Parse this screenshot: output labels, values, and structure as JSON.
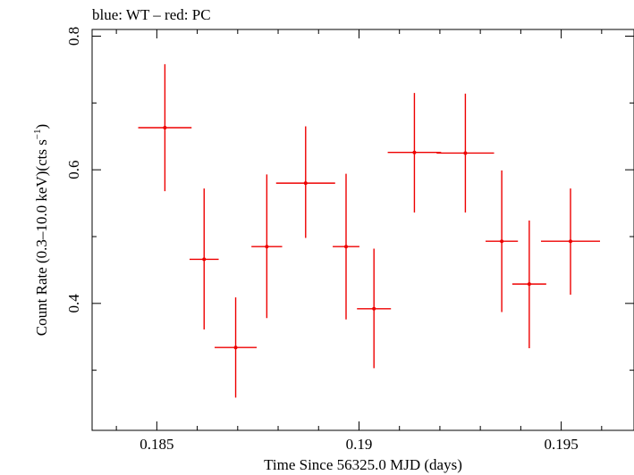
{
  "chart_data": {
    "type": "scatter",
    "title": "blue: WT – red: PC",
    "xlabel": "Time Since 56325.0 MJD (days)",
    "ylabel_main": "Count Rate (0.3–10.0 keV)(cts s",
    "ylabel_sup": "−1",
    "ylabel_end": ")",
    "xlim": [
      0.1834,
      0.1968
    ],
    "ylim": [
      0.21,
      0.81
    ],
    "x_ticks": [
      {
        "value": 0.185,
        "label": "0.185"
      },
      {
        "value": 0.19,
        "label": "0.19"
      },
      {
        "value": 0.195,
        "label": "0.195"
      }
    ],
    "x_minor_ticks": [
      0.184,
      0.186,
      0.187,
      0.188,
      0.189,
      0.191,
      0.192,
      0.193,
      0.194,
      0.196
    ],
    "y_ticks": [
      {
        "value": 0.4,
        "label": "0.4"
      },
      {
        "value": 0.6,
        "label": "0.6"
      },
      {
        "value": 0.8,
        "label": "0.8"
      }
    ],
    "y_minor_ticks": [
      0.3,
      0.5,
      0.7
    ],
    "series": [
      {
        "color": "#ee0000",
        "points": [
          {
            "x": 0.1852,
            "y": 0.663,
            "xerr": 0.00066,
            "ylo": 0.568,
            "yhi": 0.758
          },
          {
            "x": 0.18617,
            "y": 0.466,
            "xerr": 0.00036,
            "ylo": 0.361,
            "yhi": 0.572
          },
          {
            "x": 0.18695,
            "y": 0.334,
            "xerr": 0.00052,
            "ylo": 0.259,
            "yhi": 0.409
          },
          {
            "x": 0.18772,
            "y": 0.485,
            "xerr": 0.00038,
            "ylo": 0.378,
            "yhi": 0.593
          },
          {
            "x": 0.18868,
            "y": 0.58,
            "xerr": 0.00073,
            "ylo": 0.498,
            "yhi": 0.665
          },
          {
            "x": 0.18968,
            "y": 0.485,
            "xerr": 0.00033,
            "ylo": 0.376,
            "yhi": 0.594
          },
          {
            "x": 0.19037,
            "y": 0.392,
            "xerr": 0.00042,
            "ylo": 0.303,
            "yhi": 0.482
          },
          {
            "x": 0.19137,
            "y": 0.626,
            "xerr": 0.00066,
            "ylo": 0.536,
            "yhi": 0.715
          },
          {
            "x": 0.19263,
            "y": 0.625,
            "xerr": 0.00071,
            "ylo": 0.536,
            "yhi": 0.714
          },
          {
            "x": 0.19353,
            "y": 0.493,
            "xerr": 0.0004,
            "ylo": 0.387,
            "yhi": 0.599
          },
          {
            "x": 0.19421,
            "y": 0.429,
            "xerr": 0.00042,
            "ylo": 0.333,
            "yhi": 0.524
          },
          {
            "x": 0.19523,
            "y": 0.493,
            "xerr": 0.00073,
            "ylo": 0.413,
            "yhi": 0.572
          }
        ]
      }
    ]
  }
}
